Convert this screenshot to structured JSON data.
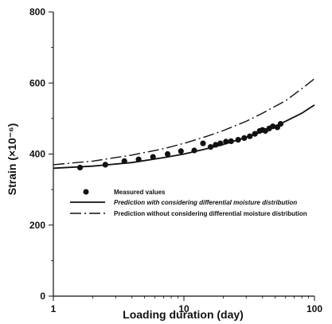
{
  "chart_data": {
    "type": "scatter",
    "title": "",
    "xlabel": "Loading duration (day)",
    "ylabel": "Strain (×10⁻⁶)",
    "xscale": "log",
    "xlim": [
      1,
      100
    ],
    "ylim": [
      0,
      800
    ],
    "x_ticks": [
      1,
      10,
      100
    ],
    "x_tick_labels": [
      "1",
      "10",
      "100"
    ],
    "y_ticks": [
      0,
      200,
      400,
      600,
      800
    ],
    "y_tick_labels": [
      "0",
      "200",
      "400",
      "600",
      "800"
    ],
    "grid": false,
    "legend_position": "lower-center",
    "series": [
      {
        "name": "Measured values",
        "kind": "points",
        "x": [
          1.6,
          2.5,
          3.5,
          4.5,
          5.8,
          7.5,
          9.5,
          12,
          14,
          16,
          17.5,
          19,
          21,
          23,
          26,
          29,
          32,
          35,
          38,
          40,
          42,
          45,
          48,
          52,
          55
        ],
        "y": [
          362,
          370,
          380,
          385,
          392,
          400,
          408,
          410,
          430,
          420,
          426,
          430,
          435,
          436,
          440,
          445,
          450,
          457,
          465,
          468,
          465,
          472,
          478,
          475,
          485
        ]
      },
      {
        "name": "Prediction with considering differential moisture distribution",
        "kind": "line",
        "style": "solid",
        "x": [
          1,
          2,
          4,
          7,
          10,
          15,
          20,
          30,
          40,
          60,
          80,
          100
        ],
        "y": [
          360,
          366,
          376,
          390,
          400,
          415,
          427,
          447,
          463,
          492,
          515,
          538
        ]
      },
      {
        "name": "Prediction without considering differential moisture distribution",
        "kind": "line",
        "style": "dashdot",
        "x": [
          1,
          2,
          4,
          7,
          10,
          15,
          20,
          30,
          40,
          60,
          80,
          100
        ],
        "y": [
          370,
          380,
          397,
          415,
          430,
          450,
          466,
          492,
          515,
          550,
          584,
          612
        ]
      }
    ]
  }
}
